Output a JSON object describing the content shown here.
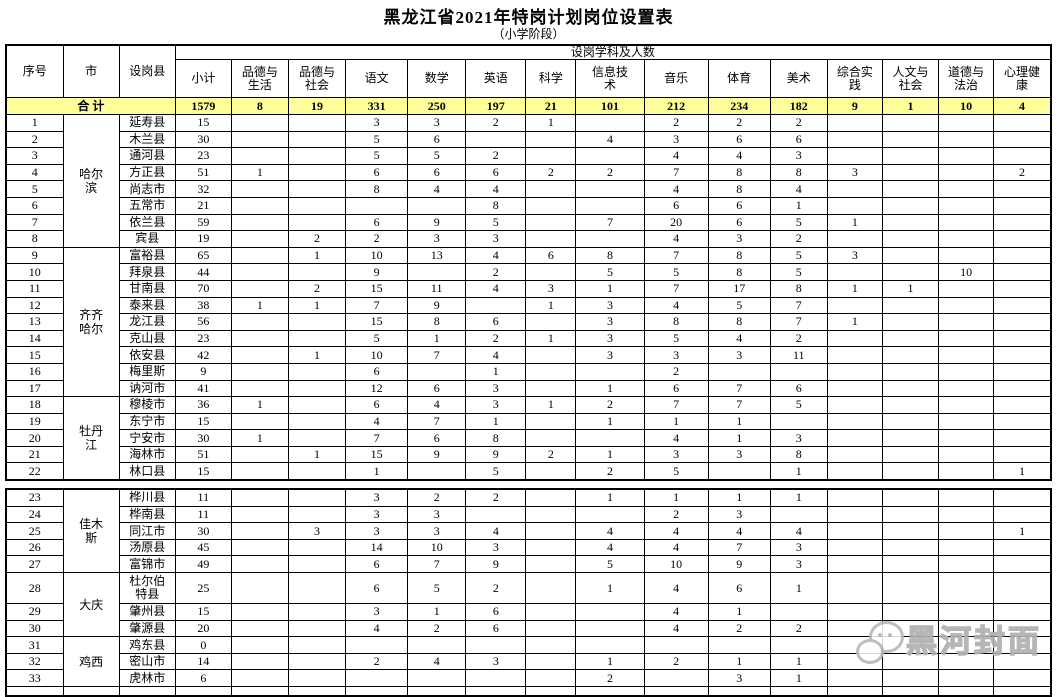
{
  "title": "黑龙江省2021年特岗计划岗位设置表",
  "subtitle": "（小学阶段）",
  "watermark": {
    "text": "黑河封面"
  },
  "table": {
    "corner_headers": [
      "序号",
      "市",
      "设岗县"
    ],
    "group_header": "设岗学科及人数",
    "subject_headers": [
      "小计",
      "品德与\n生活",
      "品德与\n社会",
      "语文",
      "数学",
      "英语",
      "科学",
      "信息技\n术",
      "音乐",
      "体育",
      "美术",
      "综合实\n践",
      "人文与\n社会",
      "道德与\n法治",
      "心理健\n康"
    ],
    "total_row": {
      "label": "合 计",
      "values": [
        "1579",
        "8",
        "19",
        "331",
        "250",
        "197",
        "21",
        "101",
        "212",
        "234",
        "182",
        "9",
        "1",
        "10",
        "4"
      ]
    },
    "sections": [
      {
        "rows": [
          {
            "no": "1",
            "city": "哈尔滨",
            "city_span": 8,
            "county": "延寿县",
            "values": [
              "15",
              "",
              "",
              "3",
              "3",
              "2",
              "1",
              "",
              "2",
              "2",
              "2",
              "",
              "",
              "",
              ""
            ]
          },
          {
            "no": "2",
            "county": "木兰县",
            "values": [
              "30",
              "",
              "",
              "5",
              "6",
              "",
              "",
              "4",
              "3",
              "6",
              "6",
              "",
              "",
              "",
              ""
            ]
          },
          {
            "no": "3",
            "county": "通河县",
            "values": [
              "23",
              "",
              "",
              "5",
              "5",
              "2",
              "",
              "",
              "4",
              "4",
              "3",
              "",
              "",
              "",
              ""
            ]
          },
          {
            "no": "4",
            "county": "方正县",
            "values": [
              "51",
              "1",
              "",
              "6",
              "6",
              "6",
              "2",
              "2",
              "7",
              "8",
              "8",
              "3",
              "",
              "",
              "2"
            ]
          },
          {
            "no": "5",
            "county": "尚志市",
            "values": [
              "32",
              "",
              "",
              "8",
              "4",
              "4",
              "",
              "",
              "4",
              "8",
              "4",
              "",
              "",
              "",
              ""
            ]
          },
          {
            "no": "6",
            "county": "五常市",
            "values": [
              "21",
              "",
              "",
              "",
              "",
              "8",
              "",
              "",
              "6",
              "6",
              "1",
              "",
              "",
              "",
              ""
            ]
          },
          {
            "no": "7",
            "county": "依兰县",
            "values": [
              "59",
              "",
              "",
              "6",
              "9",
              "5",
              "",
              "7",
              "20",
              "6",
              "5",
              "1",
              "",
              "",
              ""
            ]
          },
          {
            "no": "8",
            "county": "宾县",
            "values": [
              "19",
              "",
              "2",
              "2",
              "3",
              "3",
              "",
              "",
              "4",
              "3",
              "2",
              "",
              "",
              "",
              ""
            ]
          },
          {
            "no": "9",
            "city": "齐齐哈尔",
            "city_span": 9,
            "county": "富裕县",
            "values": [
              "65",
              "",
              "1",
              "10",
              "13",
              "4",
              "6",
              "8",
              "7",
              "8",
              "5",
              "3",
              "",
              "",
              ""
            ]
          },
          {
            "no": "10",
            "county": "拜泉县",
            "values": [
              "44",
              "",
              "",
              "9",
              "",
              "2",
              "",
              "5",
              "5",
              "8",
              "5",
              "",
              "",
              "10",
              ""
            ]
          },
          {
            "no": "11",
            "county": "甘南县",
            "values": [
              "70",
              "",
              "2",
              "15",
              "11",
              "4",
              "3",
              "1",
              "7",
              "17",
              "8",
              "1",
              "1",
              "",
              ""
            ]
          },
          {
            "no": "12",
            "county": "泰来县",
            "values": [
              "38",
              "1",
              "1",
              "7",
              "9",
              "",
              "1",
              "3",
              "4",
              "5",
              "7",
              "",
              "",
              "",
              ""
            ]
          },
          {
            "no": "13",
            "county": "龙江县",
            "values": [
              "56",
              "",
              "",
              "15",
              "8",
              "6",
              "",
              "3",
              "8",
              "8",
              "7",
              "1",
              "",
              "",
              ""
            ]
          },
          {
            "no": "14",
            "county": "克山县",
            "values": [
              "23",
              "",
              "",
              "5",
              "1",
              "2",
              "1",
              "3",
              "5",
              "4",
              "2",
              "",
              "",
              "",
              ""
            ]
          },
          {
            "no": "15",
            "county": "依安县",
            "values": [
              "42",
              "",
              "1",
              "10",
              "7",
              "4",
              "",
              "3",
              "3",
              "3",
              "11",
              "",
              "",
              "",
              ""
            ]
          },
          {
            "no": "16",
            "county": "梅里斯",
            "values": [
              "9",
              "",
              "",
              "6",
              "",
              "1",
              "",
              "",
              "2",
              "",
              "",
              "",
              "",
              "",
              ""
            ]
          },
          {
            "no": "17",
            "county": "讷河市",
            "values": [
              "41",
              "",
              "",
              "12",
              "6",
              "3",
              "",
              "1",
              "6",
              "7",
              "6",
              "",
              "",
              "",
              ""
            ]
          },
          {
            "no": "18",
            "city": "牡丹江",
            "city_span": 5,
            "county": "穆棱市",
            "values": [
              "36",
              "1",
              "",
              "6",
              "4",
              "3",
              "1",
              "2",
              "7",
              "7",
              "5",
              "",
              "",
              "",
              ""
            ]
          },
          {
            "no": "19",
            "county": "东宁市",
            "values": [
              "15",
              "",
              "",
              "4",
              "7",
              "1",
              "",
              "1",
              "1",
              "1",
              "",
              "",
              "",
              "",
              ""
            ]
          },
          {
            "no": "20",
            "county": "宁安市",
            "values": [
              "30",
              "1",
              "",
              "7",
              "6",
              "8",
              "",
              "",
              "4",
              "1",
              "3",
              "",
              "",
              "",
              ""
            ]
          },
          {
            "no": "21",
            "county": "海林市",
            "values": [
              "51",
              "",
              "1",
              "15",
              "9",
              "9",
              "2",
              "1",
              "3",
              "3",
              "8",
              "",
              "",
              "",
              ""
            ]
          },
          {
            "no": "22",
            "county": "林口县",
            "values": [
              "15",
              "",
              "",
              "1",
              "",
              "5",
              "",
              "2",
              "5",
              "",
              "1",
              "",
              "",
              "",
              "1"
            ]
          }
        ]
      },
      {
        "rows": [
          {
            "no": "23",
            "city": "佳木斯",
            "city_span": 5,
            "county": "桦川县",
            "values": [
              "11",
              "",
              "",
              "3",
              "2",
              "2",
              "",
              "1",
              "1",
              "1",
              "1",
              "",
              "",
              "",
              ""
            ]
          },
          {
            "no": "24",
            "county": "桦南县",
            "values": [
              "11",
              "",
              "",
              "3",
              "3",
              "",
              "",
              "",
              "2",
              "3",
              "",
              "",
              "",
              "",
              ""
            ]
          },
          {
            "no": "25",
            "county": "同江市",
            "values": [
              "30",
              "",
              "3",
              "3",
              "3",
              "4",
              "",
              "4",
              "4",
              "4",
              "4",
              "",
              "",
              "",
              "1"
            ]
          },
          {
            "no": "26",
            "county": "汤原县",
            "values": [
              "45",
              "",
              "",
              "14",
              "10",
              "3",
              "",
              "4",
              "4",
              "7",
              "3",
              "",
              "",
              "",
              ""
            ]
          },
          {
            "no": "27",
            "county": "富锦市",
            "values": [
              "49",
              "",
              "",
              "6",
              "7",
              "9",
              "",
              "5",
              "10",
              "9",
              "3",
              "",
              "",
              "",
              ""
            ]
          },
          {
            "no": "28",
            "city": "大庆",
            "city_span": 3,
            "county": "杜尔伯特县",
            "tall": true,
            "values": [
              "25",
              "",
              "",
              "6",
              "5",
              "2",
              "",
              "1",
              "4",
              "6",
              "1",
              "",
              "",
              "",
              ""
            ]
          },
          {
            "no": "29",
            "county": "肇州县",
            "values": [
              "15",
              "",
              "",
              "3",
              "1",
              "6",
              "",
              "",
              "4",
              "1",
              "",
              "",
              "",
              "",
              ""
            ]
          },
          {
            "no": "30",
            "county": "肇源县",
            "values": [
              "20",
              "",
              "",
              "4",
              "2",
              "6",
              "",
              "",
              "4",
              "2",
              "2",
              "",
              "",
              "",
              ""
            ]
          },
          {
            "no": "31",
            "city": "鸡西",
            "city_span": 3,
            "county": "鸡东县",
            "values": [
              "0",
              "",
              "",
              "",
              "",
              "",
              "",
              "",
              "",
              "",
              "",
              "",
              "",
              "",
              ""
            ]
          },
          {
            "no": "32",
            "county": "密山市",
            "values": [
              "14",
              "",
              "",
              "2",
              "4",
              "3",
              "",
              "1",
              "2",
              "1",
              "1",
              "",
              "",
              "",
              ""
            ]
          },
          {
            "no": "33",
            "county": "虎林市",
            "values": [
              "6",
              "",
              "",
              "",
              "",
              "",
              "",
              "2",
              "",
              "3",
              "1",
              "",
              "",
              "",
              ""
            ]
          },
          {
            "no": "",
            "city": "",
            "city_span": 1,
            "county": "",
            "partial": true,
            "values": [
              "",
              "",
              "",
              "",
              "",
              "",
              "",
              "",
              "",
              "",
              "",
              "",
              "",
              "",
              ""
            ]
          }
        ]
      }
    ]
  }
}
